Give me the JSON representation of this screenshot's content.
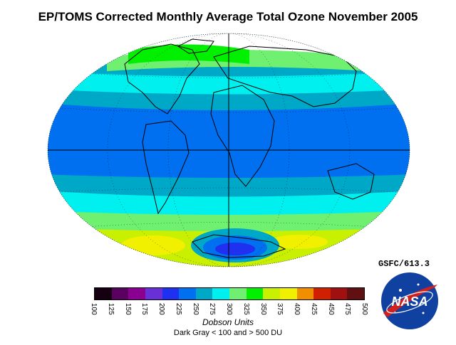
{
  "title": "EP/TOMS Corrected Monthly Average Total Ozone November 2005",
  "credit": "GSFC/613.3",
  "logo_text": "NASA",
  "units_label": "Dobson Units",
  "note": "Dark Gray < 100 and > 500 DU",
  "colorbar": {
    "ticks": [
      "100",
      "125",
      "150",
      "175",
      "200",
      "225",
      "250",
      "275",
      "300",
      "325",
      "350",
      "375",
      "400",
      "425",
      "450",
      "475",
      "500"
    ],
    "colors": [
      "#140010",
      "#5a0060",
      "#8a0090",
      "#6a30d8",
      "#2030f0",
      "#0070f0",
      "#00a8c8",
      "#00f0f0",
      "#70f070",
      "#00f000",
      "#c8f000",
      "#f0f000",
      "#f09000",
      "#d02000",
      "#a01010",
      "#601010"
    ]
  },
  "map": {
    "background": "#ffffff",
    "ocean_colors": {
      "tropics": "#0070f0",
      "mid": "#00a8c8",
      "band": "#00f0f0",
      "green": "#70f070",
      "yellow": "#c8f000",
      "polar_white": "#ffffff"
    }
  }
}
